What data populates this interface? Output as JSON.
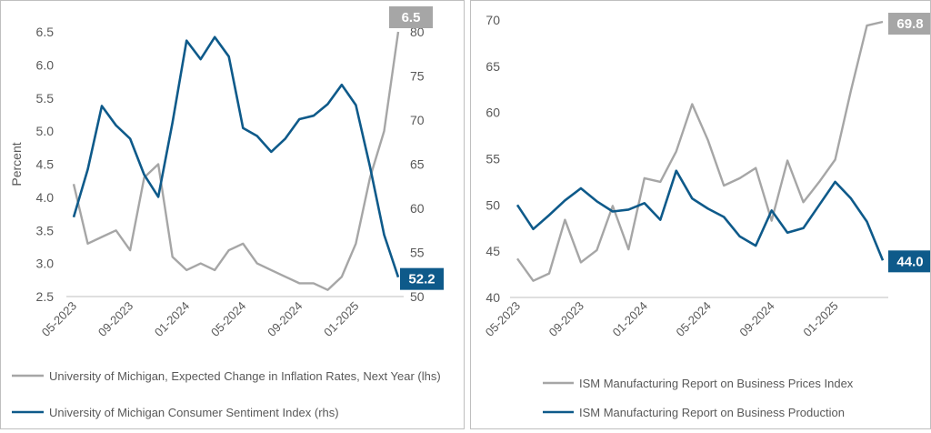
{
  "colors": {
    "gray": "#a6a6a6",
    "blue": "#0e5a8a",
    "axis": "#bfbfbf",
    "text": "#595959"
  },
  "chart_data": [
    {
      "type": "line",
      "x_tick_labels": [
        "05-2023",
        "09-2023",
        "01-2024",
        "05-2024",
        "09-2024",
        "01-2025"
      ],
      "ylabel": "Percent",
      "y_left": {
        "min": 2.5,
        "max": 6.5,
        "ticks": [
          "2.5",
          "3.0",
          "3.5",
          "4.0",
          "4.5",
          "5.0",
          "5.5",
          "6.0",
          "6.5"
        ]
      },
      "y_right": {
        "min": 50,
        "max": 80,
        "ticks": [
          "50",
          "55",
          "60",
          "65",
          "70",
          "75",
          "80"
        ]
      },
      "series": [
        {
          "name": "University of Michigan,  Expected Change in Inflation Rates, Next Year (lhs)",
          "color": "#a6a6a6",
          "axis": "left",
          "end_label": "6.5",
          "values": [
            4.2,
            3.3,
            3.4,
            3.5,
            3.2,
            4.3,
            4.5,
            3.1,
            2.9,
            3.0,
            2.9,
            3.2,
            3.3,
            3.0,
            2.9,
            2.8,
            2.7,
            2.7,
            2.6,
            2.8,
            3.3,
            4.3,
            5.0,
            6.5
          ]
        },
        {
          "name": "University of Michigan Consumer Sentiment Index (rhs)",
          "color": "#0e5a8a",
          "axis": "right",
          "end_label": "52.2",
          "values": [
            59.0,
            64.4,
            71.6,
            69.4,
            67.9,
            63.8,
            61.3,
            69.7,
            79.0,
            76.9,
            79.4,
            77.2,
            69.1,
            68.2,
            66.4,
            67.9,
            70.1,
            70.5,
            71.8,
            74.0,
            71.7,
            64.7,
            57.0,
            52.2
          ]
        }
      ]
    },
    {
      "type": "line",
      "x_tick_labels": [
        "05-2023",
        "09-2023",
        "01-2024",
        "05-2024",
        "09-2024",
        "01-2025"
      ],
      "y_left": {
        "min": 40,
        "max": 70,
        "ticks": [
          "40",
          "45",
          "50",
          "55",
          "60",
          "65",
          "70"
        ]
      },
      "series": [
        {
          "name": "ISM Manufacturing Report on Business Prices Index",
          "color": "#a6a6a6",
          "end_label": "69.8",
          "values": [
            44.2,
            41.8,
            42.6,
            48.4,
            43.8,
            45.1,
            49.9,
            45.2,
            52.9,
            52.5,
            55.8,
            60.9,
            57.0,
            52.1,
            52.9,
            54.0,
            48.3,
            54.8,
            50.3,
            52.5,
            54.9,
            62.4,
            69.4,
            69.8
          ]
        },
        {
          "name": "ISM Manufacturing Report on Business Production",
          "color": "#0e5a8a",
          "end_label": "44.0",
          "values": [
            50.0,
            47.4,
            48.9,
            50.5,
            51.8,
            50.4,
            49.3,
            49.5,
            50.2,
            48.4,
            53.7,
            50.7,
            49.6,
            48.7,
            46.6,
            45.6,
            49.4,
            47.0,
            47.5,
            50.0,
            52.5,
            50.7,
            48.2,
            44.0
          ]
        }
      ]
    }
  ]
}
